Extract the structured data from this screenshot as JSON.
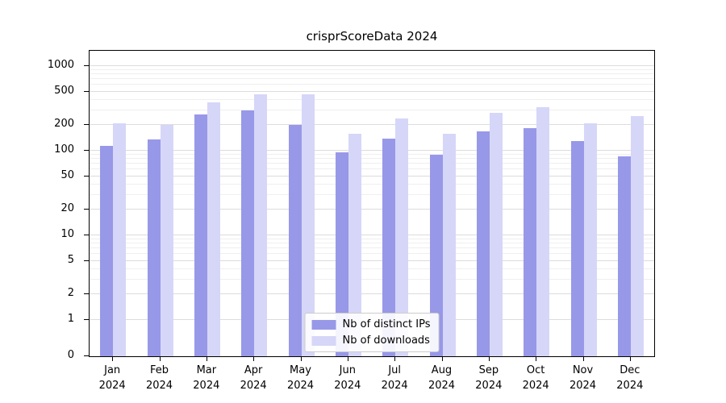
{
  "chart_data": {
    "type": "bar",
    "title": "crisprScoreData 2024",
    "year_label": "2024",
    "categories": [
      "Jan",
      "Feb",
      "Mar",
      "Apr",
      "May",
      "Jun",
      "Jul",
      "Aug",
      "Sep",
      "Oct",
      "Nov",
      "Dec"
    ],
    "series": [
      {
        "name": "Nb of distinct IPs",
        "color": "#9898e8",
        "values": [
          115,
          135,
          270,
          300,
          200,
          95,
          140,
          90,
          170,
          185,
          130,
          85
        ]
      },
      {
        "name": "Nb of downloads",
        "color": "#d6d6f8",
        "values": [
          210,
          200,
          375,
          460,
          460,
          160,
          240,
          160,
          280,
          330,
          210,
          255
        ]
      }
    ],
    "yticks": [
      0,
      1,
      2,
      5,
      10,
      20,
      50,
      100,
      200,
      500,
      1000
    ],
    "scale": "symlog",
    "ylim": [
      0,
      1500
    ],
    "grid": true,
    "legend_position": "lower center",
    "colors": {
      "grid_major": "#dcdcdc",
      "grid_minor": "#efefef",
      "axis": "#000000",
      "legend_border": "#cccccc",
      "background": "#ffffff"
    }
  }
}
